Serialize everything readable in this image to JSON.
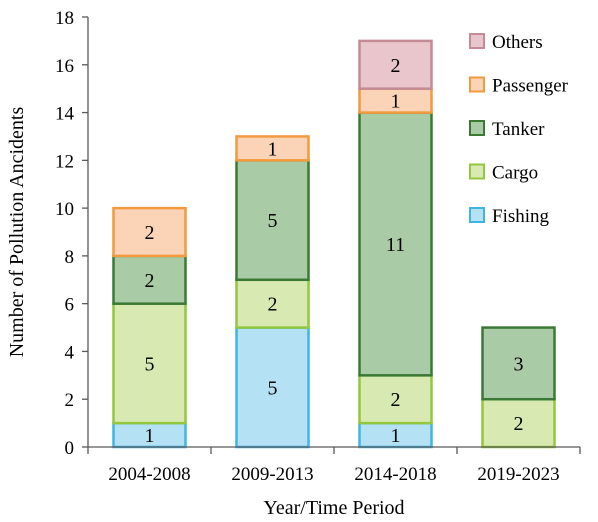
{
  "chart_data": {
    "type": "bar",
    "stacked": true,
    "title": "",
    "xlabel": "Year/Time Period",
    "ylabel": "Number of  Pollution Ancidents",
    "ylim": [
      0,
      18
    ],
    "yticks": [
      0,
      2,
      4,
      6,
      8,
      10,
      12,
      14,
      16,
      18
    ],
    "grid": false,
    "legend_position": "top-right",
    "categories": [
      "2004-2008",
      "2009-2013",
      "2014-2018",
      "2019-2023"
    ],
    "series": [
      {
        "name": "Fishing",
        "values": [
          1,
          5,
          1,
          0
        ],
        "fill": "#b4e2f4",
        "stroke": "#3fb5e3"
      },
      {
        "name": "Cargo",
        "values": [
          5,
          2,
          2,
          2
        ],
        "fill": "#d8e9b1",
        "stroke": "#92c73e"
      },
      {
        "name": "Tanker",
        "values": [
          2,
          5,
          11,
          3
        ],
        "fill": "#a9cba5",
        "stroke": "#3a7a34"
      },
      {
        "name": "Passenger",
        "values": [
          2,
          1,
          1,
          0
        ],
        "fill": "#fbd4b8",
        "stroke": "#f39a3f"
      },
      {
        "name": "Others",
        "values": [
          0,
          0,
          2,
          0
        ],
        "fill": "#e8c6cb",
        "stroke": "#c48a95"
      }
    ],
    "legend_order": [
      "Others",
      "Passenger",
      "Tanker",
      "Cargo",
      "Fishing"
    ]
  }
}
